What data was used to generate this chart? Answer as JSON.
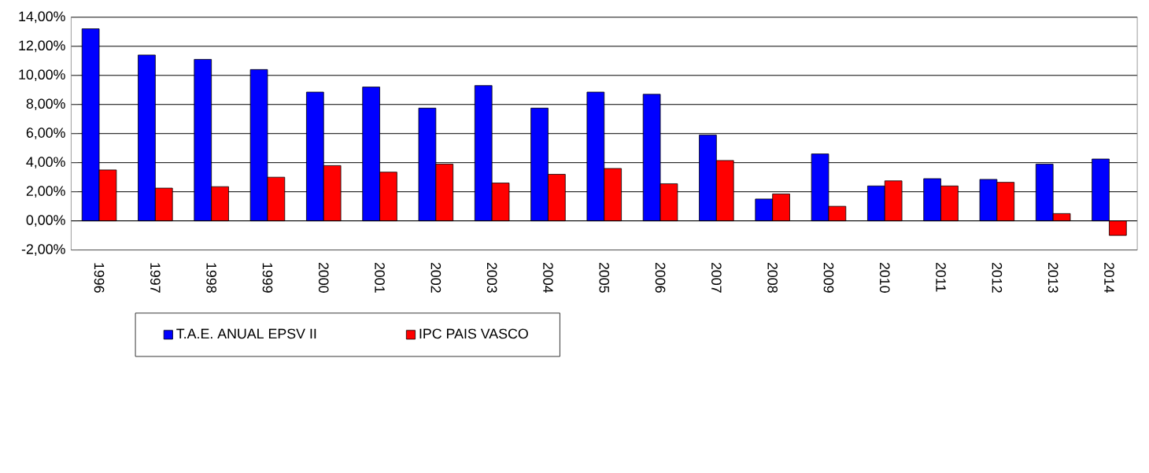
{
  "chart_data": {
    "type": "bar",
    "categories": [
      "1996",
      "1997",
      "1998",
      "1999",
      "2000",
      "2001",
      "2002",
      "2003",
      "2004",
      "2005",
      "2006",
      "2007",
      "2008",
      "2009",
      "2010",
      "2011",
      "2012",
      "2013",
      "2014"
    ],
    "series": [
      {
        "name": "T.A.E. ANUAL EPSV II",
        "color": "#0000ff",
        "values": [
          13.2,
          11.4,
          11.1,
          10.4,
          8.85,
          9.2,
          7.75,
          9.3,
          7.75,
          8.85,
          8.7,
          5.9,
          1.5,
          4.6,
          2.4,
          2.9,
          2.85,
          3.9,
          4.25
        ]
      },
      {
        "name": "IPC PAIS VASCO",
        "color": "#ff0000",
        "values": [
          3.5,
          2.25,
          2.35,
          3.0,
          3.8,
          3.35,
          3.9,
          2.6,
          3.2,
          3.6,
          2.55,
          4.15,
          1.85,
          1.0,
          2.75,
          2.4,
          2.65,
          0.5,
          -1.0
        ]
      }
    ],
    "ylim": [
      -2,
      14
    ],
    "yticks": [
      {
        "value": -2,
        "label": "-2,00%"
      },
      {
        "value": 0,
        "label": "0,00%"
      },
      {
        "value": 2,
        "label": "2,00%"
      },
      {
        "value": 4,
        "label": "4,00%"
      },
      {
        "value": 6,
        "label": "6,00%"
      },
      {
        "value": 8,
        "label": "8,00%"
      },
      {
        "value": 10,
        "label": "10,00%"
      },
      {
        "value": 12,
        "label": "12,00%"
      },
      {
        "value": 14,
        "label": "14,00%"
      }
    ],
    "grid": "y",
    "legend": "bottom"
  }
}
